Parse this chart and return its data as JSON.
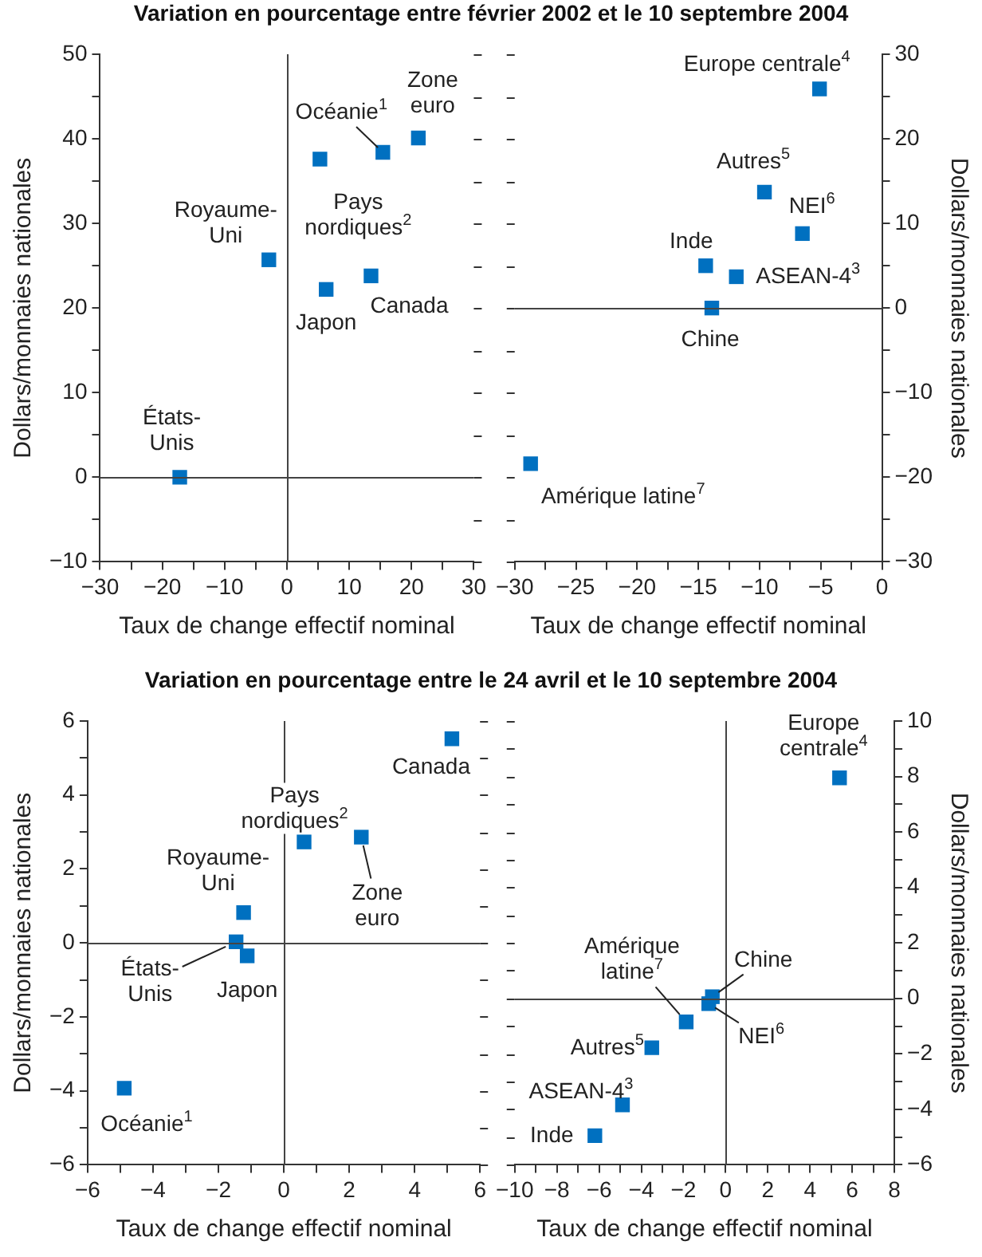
{
  "chart_data": [
    {
      "type": "scatter",
      "title": "Variation en pourcentage entre février 2002 et le 10 septembre 2004",
      "xlabel": "Taux de change effectif nominal",
      "ylabel": "Dollars/monnaies nationales",
      "marker": "square",
      "legend": false,
      "grid": false,
      "xlim": [
        -30,
        30
      ],
      "xticks": [
        -30,
        {
          "value": -25,
          "label": null
        },
        -20,
        {
          "value": -15,
          "label": null
        },
        -10,
        {
          "value": -5,
          "label": null
        },
        0,
        {
          "value": 5,
          "label": null
        },
        10,
        {
          "value": 15,
          "label": null
        },
        20,
        {
          "value": 25,
          "label": null
        },
        30
      ],
      "ylim": [
        -10,
        50
      ],
      "yticks": [
        -10,
        {
          "value": -5,
          "label": null
        },
        0,
        {
          "value": 5,
          "label": null
        },
        10,
        {
          "value": 15,
          "label": null
        },
        20,
        {
          "value": 25,
          "label": null
        },
        30,
        {
          "value": 35,
          "label": null
        },
        40,
        {
          "value": 45,
          "label": null
        },
        50
      ],
      "ref_lines": [
        {
          "axis": "x",
          "value": 0
        },
        {
          "axis": "y",
          "value": 0
        }
      ],
      "series": [
        {
          "name": "États-Unis",
          "color": "#0070c0",
          "x": [
            -17.2
          ],
          "values": [
            0
          ]
        },
        {
          "name": "Royaume-Uni",
          "color": "#0070c0",
          "x": [
            -2.9
          ],
          "values": [
            25.7
          ]
        },
        {
          "name": "Pays nordiques$^{2}$",
          "color": "#0070c0",
          "x": [
            5.3
          ],
          "values": [
            37.6
          ]
        },
        {
          "name": "Océanie$^{1}$",
          "color": "#0070c0",
          "x": [
            15.4
          ],
          "values": [
            38.4
          ]
        },
        {
          "name": "Zone euro",
          "color": "#0070c0",
          "x": [
            21.1
          ],
          "values": [
            40.1
          ]
        },
        {
          "name": "Japon",
          "color": "#0070c0",
          "x": [
            6.3
          ],
          "values": [
            22.2
          ]
        },
        {
          "name": "Canada",
          "color": "#0070c0",
          "x": [
            13.5
          ],
          "values": [
            23.8
          ]
        }
      ]
    },
    {
      "type": "scatter",
      "xlabel": "Taux de change effectif nominal",
      "y2label": "Dollars/monnaies nationales",
      "marker": "square",
      "legend": false,
      "grid": false,
      "xlim": [
        -30,
        0
      ],
      "xticks": [
        -30,
        {
          "value": -27.5,
          "label": null
        },
        -25,
        {
          "value": -22.5,
          "label": null
        },
        -20,
        {
          "value": -17.5,
          "label": null
        },
        -15,
        {
          "value": -12.5,
          "label": null
        },
        -10,
        {
          "value": -7.5,
          "label": null
        },
        -5,
        {
          "value": -2.5,
          "label": null
        },
        0
      ],
      "y2lim": [
        -30,
        30
      ],
      "y2ticks": [
        -30,
        {
          "value": -25,
          "label": null
        },
        -20,
        {
          "value": -15,
          "label": null
        },
        -10,
        {
          "value": -5,
          "label": null
        },
        0,
        {
          "value": 5,
          "label": null
        },
        10,
        {
          "value": 15,
          "label": null
        },
        20,
        {
          "value": 25,
          "label": null
        },
        30
      ],
      "ref_lines": [
        {
          "axis": "y2",
          "value": 0
        }
      ],
      "series": [
        {
          "name": "Europe centrale$^{4}$",
          "color": "#0070c0",
          "axis": "y2",
          "x": [
            -5.1
          ],
          "values": [
            25.9
          ]
        },
        {
          "name": "Autres$^{5}$",
          "color": "#0070c0",
          "axis": "y2",
          "x": [
            -9.6
          ],
          "values": [
            13.7
          ]
        },
        {
          "name": "NEI$^{6}$",
          "color": "#0070c0",
          "axis": "y2",
          "x": [
            -6.5
          ],
          "values": [
            8.8
          ]
        },
        {
          "name": "Inde",
          "color": "#0070c0",
          "axis": "y2",
          "x": [
            -14.4
          ],
          "values": [
            5.0
          ]
        },
        {
          "name": "ASEAN-4$^{3}$",
          "color": "#0070c0",
          "axis": "y2",
          "x": [
            -11.9
          ],
          "values": [
            3.7
          ]
        },
        {
          "name": "Chine",
          "color": "#0070c0",
          "axis": "y2",
          "x": [
            -13.9
          ],
          "values": [
            0
          ]
        },
        {
          "name": "Amérique latine$^{7}$",
          "color": "#0070c0",
          "axis": "y2",
          "x": [
            -28.7
          ],
          "values": [
            -18.4
          ]
        }
      ]
    },
    {
      "type": "scatter",
      "title": "Variation en pourcentage entre le 24 avril et le 10 septembre 2004",
      "xlabel": "Taux de change effectif nominal",
      "ylabel": "Dollars/monnaies nationales",
      "marker": "square",
      "legend": false,
      "grid": false,
      "xlim": [
        -6,
        6
      ],
      "xticks": [
        -6,
        {
          "value": -5,
          "label": null
        },
        -4,
        {
          "value": -3,
          "label": null
        },
        -2,
        {
          "value": -1,
          "label": null
        },
        0,
        {
          "value": 1,
          "label": null
        },
        2,
        {
          "value": 3,
          "label": null
        },
        4,
        {
          "value": 5,
          "label": null
        },
        6
      ],
      "ylim": [
        -6,
        6
      ],
      "yticks": [
        -6,
        {
          "value": -5,
          "label": null
        },
        -4,
        {
          "value": -3,
          "label": null
        },
        -2,
        {
          "value": -1,
          "label": null
        },
        0,
        {
          "value": 1,
          "label": null
        },
        2,
        {
          "value": 3,
          "label": null
        },
        4,
        {
          "value": 5,
          "label": null
        },
        6
      ],
      "ref_lines": [
        {
          "axis": "x",
          "value": 0
        },
        {
          "axis": "y",
          "value": 0
        }
      ],
      "series": [
        {
          "name": "Canada",
          "color": "#0070c0",
          "x": [
            5.14
          ],
          "values": [
            5.52
          ]
        },
        {
          "name": "Pays nordiques$^{2}$",
          "color": "#0070c0",
          "x": [
            0.62
          ],
          "values": [
            2.73
          ]
        },
        {
          "name": "Zone euro",
          "color": "#0070c0",
          "x": [
            2.37
          ],
          "values": [
            2.86
          ]
        },
        {
          "name": "Royaume-Uni",
          "color": "#0070c0",
          "x": [
            -1.23
          ],
          "values": [
            0.82
          ]
        },
        {
          "name": "États-Unis",
          "color": "#0070c0",
          "x": [
            -1.46
          ],
          "values": [
            0.03
          ]
        },
        {
          "name": "Japon",
          "color": "#0070c0",
          "x": [
            -1.12
          ],
          "values": [
            -0.35
          ]
        },
        {
          "name": "Océanie$^{1}$",
          "color": "#0070c0",
          "x": [
            -4.88
          ],
          "values": [
            -3.93
          ]
        }
      ]
    },
    {
      "type": "scatter",
      "xlabel": "Taux de change effectif nominal",
      "y2label": "Dollars/monnaies nationales",
      "marker": "square",
      "legend": false,
      "grid": false,
      "xlim": [
        -10,
        8
      ],
      "xticks": [
        -10,
        {
          "value": -9,
          "label": null
        },
        -8,
        {
          "value": -7,
          "label": null
        },
        -6,
        {
          "value": -5,
          "label": null
        },
        -4,
        {
          "value": -3,
          "label": null
        },
        -2,
        {
          "value": -1,
          "label": null
        },
        0,
        {
          "value": 1,
          "label": null
        },
        2,
        {
          "value": 3,
          "label": null
        },
        4,
        {
          "value": 5,
          "label": null
        },
        6,
        {
          "value": 7,
          "label": null
        },
        8
      ],
      "y2lim": [
        -6,
        10
      ],
      "y2ticks": [
        -6,
        {
          "value": -5,
          "label": null
        },
        -4,
        {
          "value": -3,
          "label": null
        },
        -2,
        {
          "value": -1,
          "label": null
        },
        0,
        {
          "value": 1,
          "label": null
        },
        2,
        {
          "value": 3,
          "label": null
        },
        4,
        {
          "value": 5,
          "label": null
        },
        6,
        {
          "value": 7,
          "label": null
        },
        8,
        {
          "value": 9,
          "label": null
        },
        10
      ],
      "ref_lines": [
        {
          "axis": "x",
          "value": 0
        },
        {
          "axis": "y2",
          "value": 0
        }
      ],
      "series": [
        {
          "name": "Europe centrale$^{4}$",
          "color": "#0070c0",
          "axis": "y2",
          "x": [
            5.4
          ],
          "values": [
            7.95
          ]
        },
        {
          "name": "Chine",
          "color": "#0070c0",
          "axis": "y2",
          "x": [
            -0.63
          ],
          "values": [
            0.06
          ]
        },
        {
          "name": "NEI$^{6}$",
          "color": "#0070c0",
          "axis": "y2",
          "x": [
            -0.8
          ],
          "values": [
            -0.19
          ]
        },
        {
          "name": "Amérique latine$^{7}$",
          "color": "#0070c0",
          "axis": "y2",
          "x": [
            -1.87
          ],
          "values": [
            -0.85
          ]
        },
        {
          "name": "Autres$^{5}$",
          "color": "#0070c0",
          "axis": "y2",
          "x": [
            -3.5
          ],
          "values": [
            -1.78
          ]
        },
        {
          "name": "ASEAN-4$^{3}$",
          "color": "#0070c0",
          "axis": "y2",
          "x": [
            -4.89
          ],
          "values": [
            -3.84
          ]
        },
        {
          "name": "Inde",
          "color": "#0070c0",
          "axis": "y2",
          "x": [
            -6.2
          ],
          "values": [
            -4.95
          ]
        }
      ]
    }
  ]
}
